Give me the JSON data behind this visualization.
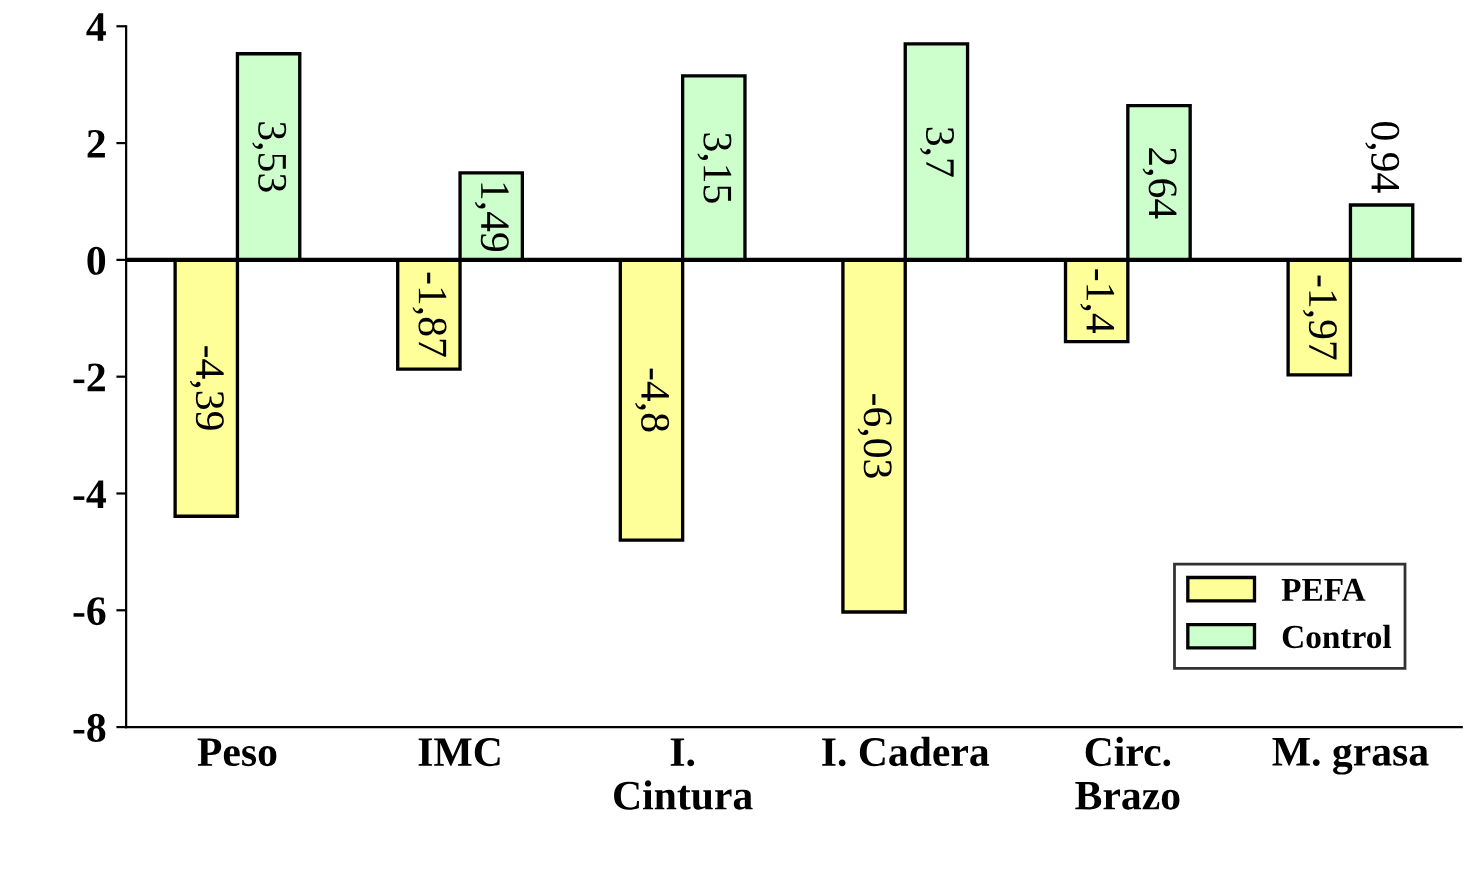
{
  "chart_data": {
    "type": "bar",
    "categories": [
      "Peso",
      "IMC",
      "I.\nCintura",
      "I. Cadera",
      "Circ.\nBrazo",
      "M. grasa"
    ],
    "series": [
      {
        "name": "PEFA",
        "color": "#ffff99",
        "values": [
          -4.39,
          -1.87,
          -4.8,
          -6.03,
          -1.4,
          -1.97
        ],
        "value_labels": [
          "-4,39",
          "-1,87",
          "-4,8",
          "-6,03",
          "-1,4",
          "-1,97"
        ]
      },
      {
        "name": "Control",
        "color": "#ccffcc",
        "values": [
          3.53,
          1.49,
          3.15,
          3.7,
          2.64,
          0.94
        ],
        "value_labels": [
          "3,53",
          "1,49",
          "3,15",
          "3,7",
          "2,64",
          "0,94"
        ]
      }
    ],
    "ylim": [
      -8,
      4
    ],
    "yticks": [
      -8,
      -6,
      -4,
      -2,
      0,
      2,
      4
    ],
    "legend": "bottom right"
  }
}
